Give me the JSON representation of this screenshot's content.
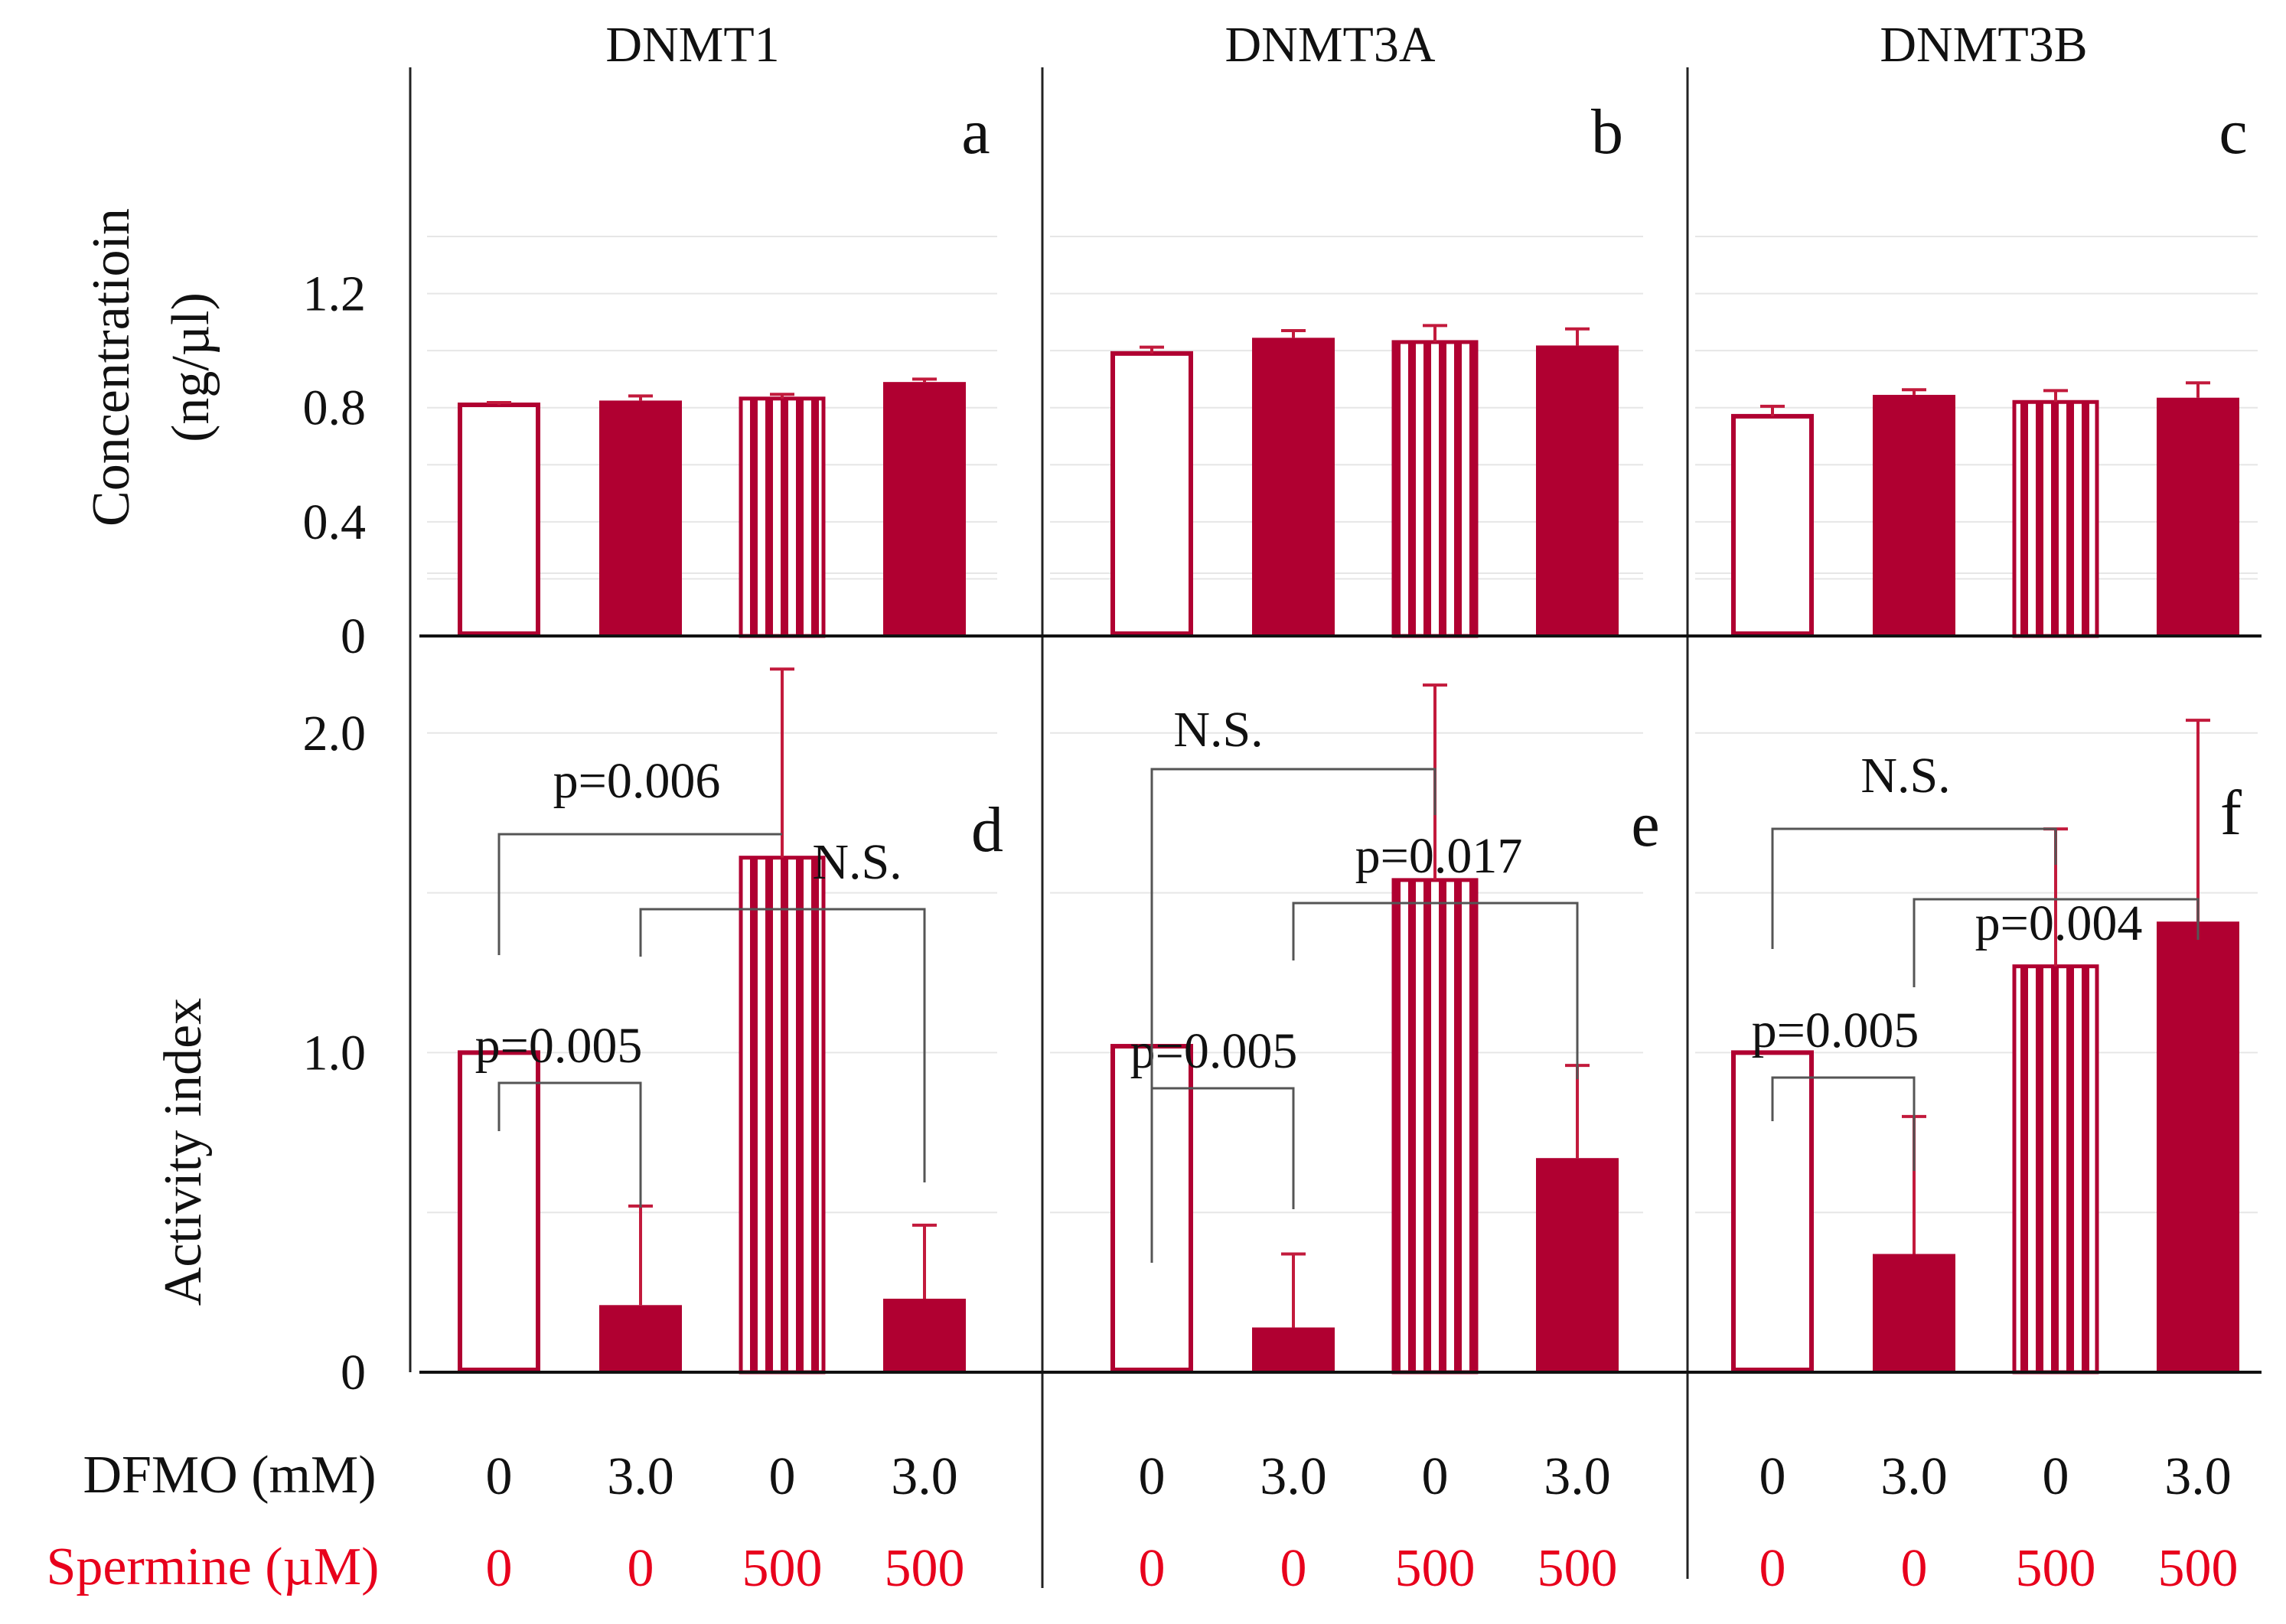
{
  "colors": {
    "bar": "#b00031",
    "error": "#c21a3c",
    "bracket": "#555555",
    "spermine_text": "#e8001c",
    "grid": "#e6e6e6"
  },
  "panel_titles": [
    "DNMT1",
    "DNMT3A",
    "DNMT3B"
  ],
  "y_labels": {
    "top": [
      "Concentratioin",
      "(ng/µl)"
    ],
    "bottom": "Activity index"
  },
  "conditions": {
    "dfmo_label": "DFMO (mM)",
    "spermine_label": "Spermine (µM)",
    "dfmo": [
      "0",
      "3.0",
      "0",
      "3.0"
    ],
    "spermine": [
      "0",
      "0",
      "500",
      "500"
    ]
  },
  "chart_data": [
    {
      "type": "bar",
      "panel": "a",
      "title": "DNMT1",
      "ylabel": "Concentratioin (ng/µl)",
      "ylim": [
        0,
        1.4
      ],
      "ticks": [
        0,
        0.4,
        0.8,
        1.2
      ],
      "tick_labels": [
        "0",
        "0.4",
        "0.8",
        "1.2"
      ],
      "categories": [
        "DFMO 0 / Spermine 0",
        "DFMO 3.0 / Spermine 0",
        "DFMO 0 / Spermine 500",
        "DFMO 3.0 / Spermine 500"
      ],
      "styles": [
        "open",
        "solid",
        "striped",
        "solid"
      ],
      "values": [
        0.81,
        0.825,
        0.832,
        0.89
      ],
      "errors": [
        0.008,
        0.016,
        0.015,
        0.01
      ]
    },
    {
      "type": "bar",
      "panel": "b",
      "title": "DNMT3A",
      "ylabel": "Concentratioin (ng/µl)",
      "ylim": [
        0,
        1.4
      ],
      "categories": [
        "DFMO 0 / Spermine 0",
        "DFMO 3.0 / Spermine 0",
        "DFMO 0 / Spermine 500",
        "DFMO 3.0 / Spermine 500"
      ],
      "styles": [
        "open",
        "solid",
        "striped",
        "solid"
      ],
      "values": [
        0.99,
        1.045,
        1.03,
        1.018
      ],
      "errors": [
        0.022,
        0.025,
        0.058,
        0.058
      ]
    },
    {
      "type": "bar",
      "panel": "c",
      "title": "DNMT3B",
      "ylabel": "Concentratioin (ng/µl)",
      "ylim": [
        0,
        1.4
      ],
      "categories": [
        "DFMO 0 / Spermine 0",
        "DFMO 3.0 / Spermine 0",
        "DFMO 0 / Spermine 500",
        "DFMO 3.0 / Spermine 500"
      ],
      "styles": [
        "open",
        "solid",
        "striped",
        "solid"
      ],
      "values": [
        0.77,
        0.845,
        0.82,
        0.835
      ],
      "errors": [
        0.035,
        0.018,
        0.04,
        0.052
      ]
    },
    {
      "type": "bar",
      "panel": "d",
      "ylabel": "Activity index",
      "ylim": [
        0,
        2.5
      ],
      "ticks": [
        0,
        1.0,
        2.0
      ],
      "tick_labels": [
        "0",
        "1.0",
        "2.0"
      ],
      "categories": [
        "DFMO 0 / Spermine 0",
        "DFMO 3.0 / Spermine 0",
        "DFMO 0 / Spermine 500",
        "DFMO 3.0 / Spermine 500"
      ],
      "styles": [
        "open",
        "solid",
        "striped",
        "solid"
      ],
      "values": [
        1.0,
        0.21,
        1.61,
        0.23
      ],
      "errors": [
        0,
        0.31,
        0.59,
        0.23
      ],
      "annotations": [
        {
          "text": "p=0.005",
          "from": 0,
          "to": 1
        },
        {
          "text": "p=0.006",
          "from": 0,
          "to": 2
        },
        {
          "text": "N.S.",
          "from": 1,
          "to": 3
        }
      ]
    },
    {
      "type": "bar",
      "panel": "e",
      "ylabel": "Activity index",
      "ylim": [
        0,
        2.5
      ],
      "categories": [
        "DFMO 0 / Spermine 0",
        "DFMO 3.0 / Spermine 0",
        "DFMO 0 / Spermine 500",
        "DFMO 3.0 / Spermine 500"
      ],
      "styles": [
        "open",
        "solid",
        "striped",
        "solid"
      ],
      "values": [
        1.02,
        0.14,
        1.54,
        0.67
      ],
      "errors": [
        0,
        0.23,
        0.61,
        0.29
      ],
      "annotations": [
        {
          "text": "p=0.005",
          "from": 0,
          "to": 1
        },
        {
          "text": "N.S.",
          "from": 0,
          "to": 2
        },
        {
          "text": "p=0.017",
          "from": 1,
          "to": 3
        }
      ]
    },
    {
      "type": "bar",
      "panel": "f",
      "ylabel": "Activity index",
      "ylim": [
        0,
        2.5
      ],
      "categories": [
        "DFMO 0 / Spermine 0",
        "DFMO 3.0 / Spermine 0",
        "DFMO 0 / Spermine 500",
        "DFMO 3.0 / Spermine 500"
      ],
      "styles": [
        "open",
        "solid",
        "striped",
        "solid"
      ],
      "values": [
        1.0,
        0.37,
        1.27,
        1.41
      ],
      "errors": [
        0,
        0.43,
        0.43,
        0.63
      ],
      "annotations": [
        {
          "text": "p=0.005",
          "from": 0,
          "to": 1
        },
        {
          "text": "N.S.",
          "from": 0,
          "to": 2
        },
        {
          "text": "p=0.004",
          "from": 1,
          "to": 3
        }
      ]
    }
  ]
}
